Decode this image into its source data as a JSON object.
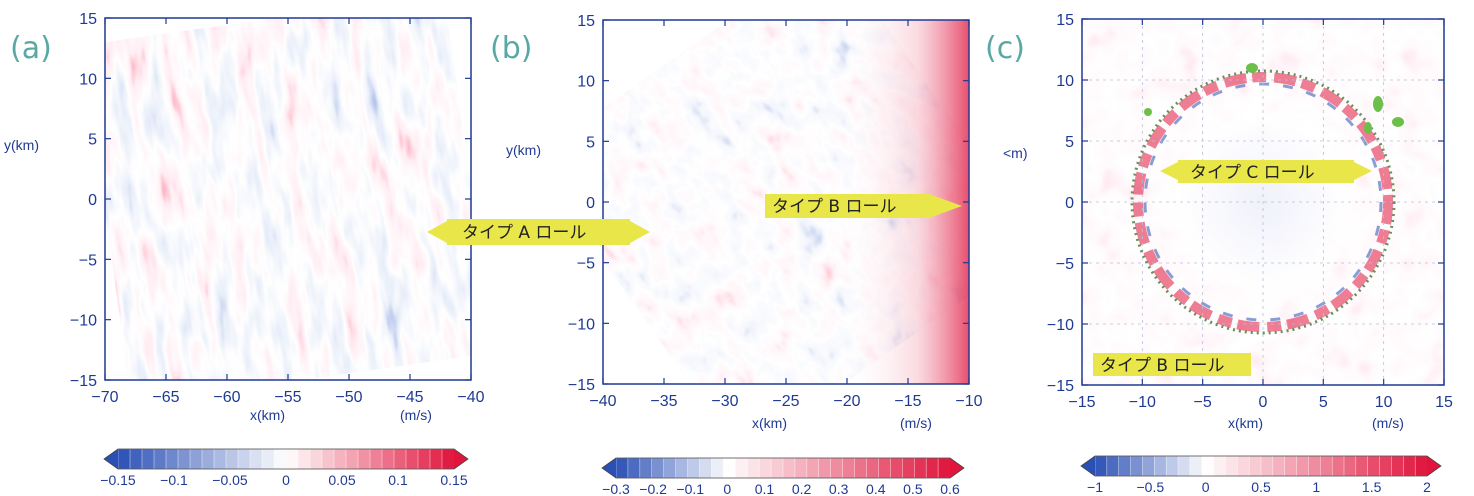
{
  "chart_data": [
    {
      "type": "heatmap",
      "panel_label": "(a)",
      "xlabel": "x(km)",
      "ylabel": "y(km)",
      "xlim": [
        -70,
        -40
      ],
      "ylim": [
        -15,
        15
      ],
      "x_ticks": [
        -70,
        -65,
        -60,
        -55,
        -50,
        -45,
        -40
      ],
      "y_ticks": [
        -15,
        -10,
        -5,
        0,
        5,
        10,
        15
      ],
      "x_tick_labels": [
        "−70",
        "−65",
        "−60",
        "−55",
        "−50",
        "−45",
        "−40"
      ],
      "y_tick_labels": [
        "−15",
        "−10",
        "−5",
        "0",
        "5",
        "10",
        "15"
      ],
      "units": "(m/s)",
      "colorbar": {
        "range": [
          -0.15,
          0.15
        ],
        "ticks": [
          -0.15,
          -0.1,
          -0.05,
          0,
          0.05,
          0.1,
          0.15
        ],
        "tick_labels": [
          "−0.15",
          "−0.1",
          "−0.05",
          "0",
          "0.05",
          "0.1",
          "0.15"
        ]
      },
      "pattern": "streaks",
      "annotations": []
    },
    {
      "type": "heatmap",
      "panel_label": "(b)",
      "xlabel": "x(km)",
      "ylabel": "y(km)",
      "xlim": [
        -40,
        -10
      ],
      "ylim": [
        -15,
        15
      ],
      "x_ticks": [
        -40,
        -35,
        -30,
        -25,
        -20,
        -15,
        -10
      ],
      "y_ticks": [
        -15,
        -10,
        -5,
        0,
        5,
        10,
        15
      ],
      "x_tick_labels": [
        "−40",
        "−35",
        "−30",
        "−25",
        "−20",
        "−15",
        "−10"
      ],
      "y_tick_labels": [
        "−15",
        "−10",
        "−5",
        "0",
        "5",
        "10",
        "15"
      ],
      "units": "(m/s)",
      "colorbar": {
        "range": [
          -0.3,
          0.6
        ],
        "ticks": [
          -0.3,
          -0.2,
          -0.1,
          0,
          0.1,
          0.2,
          0.3,
          0.4,
          0.5,
          0.6
        ],
        "tick_labels": [
          "−0.3",
          "−0.2",
          "−0.1",
          "0",
          "0.1",
          "0.2",
          "0.3",
          "0.4",
          "0.5",
          "0.6"
        ]
      },
      "pattern": "mixed",
      "annotations": []
    },
    {
      "type": "heatmap",
      "panel_label": "(c)",
      "xlabel": "x(km)",
      "ylabel": "<m)",
      "xlim": [
        -15,
        15
      ],
      "ylim": [
        -15,
        15
      ],
      "x_ticks": [
        -15,
        -10,
        -5,
        0,
        5,
        10,
        15
      ],
      "y_ticks": [
        -15,
        -10,
        -5,
        0,
        5,
        10,
        15
      ],
      "x_tick_labels": [
        "−15",
        "−10",
        "−5",
        "0",
        "5",
        "10",
        "15"
      ],
      "y_tick_labels": [
        "−15",
        "−10",
        "−5",
        "0",
        "5",
        "10",
        "15"
      ],
      "units": "(m/s)",
      "colorbar": {
        "range": [
          -1,
          2
        ],
        "ticks": [
          -1,
          -0.5,
          0,
          0.5,
          1,
          1.5,
          2
        ],
        "tick_labels": [
          "−1",
          "−0.5",
          "0",
          "0.5",
          "1",
          "1.5",
          "2"
        ]
      },
      "pattern": "ring",
      "ring": {
        "center": [
          0,
          0
        ],
        "radius_km": 10,
        "style": "dotted"
      },
      "annotations": [
        {
          "text": "タイプ C ロール",
          "arrows": "both"
        },
        {
          "text": "タイプ B ロール",
          "arrows": "none"
        }
      ]
    }
  ],
  "callouts": [
    {
      "text": "タイプ A ロール",
      "arrows": "both"
    },
    {
      "text": "タイプ B ロール",
      "arrows": "right"
    }
  ],
  "colors": {
    "negative": "#2a4fb5",
    "zero": "#ffffff",
    "positive": "#e0143c",
    "axis": "#1f3a93",
    "panel_letter": "#5aa8a4",
    "callout_fill": "#e9e64a",
    "callout_arrow": "#e9e64a",
    "ring": "#6b8e5a",
    "green_patch": "#6cc04a"
  }
}
